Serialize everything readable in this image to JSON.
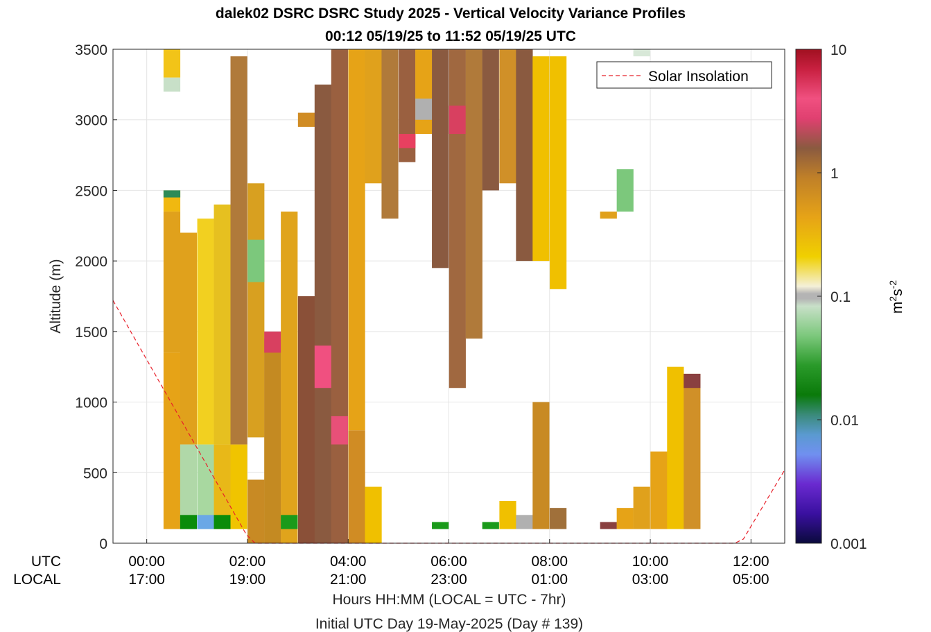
{
  "chart_data": {
    "type": "heatmap",
    "title": "dalek02 DSRC DSRC Study 2025 - Vertical Velocity Variance Profiles",
    "subtitle": "00:12 05/19/25 to 11:52 05/19/25  UTC",
    "ylabel": "Altitude (m)",
    "xlabel": "Hours HH:MM  (LOCAL = UTC - 7hr)",
    "xlabel2": "Initial UTC Day 19-May-2025 (Day # 139)",
    "utc_row_label": "UTC",
    "local_row_label": "LOCAL",
    "x_ticks_utc": [
      "00:00",
      "02:00",
      "04:00",
      "06:00",
      "08:00",
      "10:00",
      "12:00"
    ],
    "x_ticks_local": [
      "17:00",
      "19:00",
      "21:00",
      "23:00",
      "01:00",
      "03:00",
      "05:00"
    ],
    "x_tick_hours": [
      0,
      2,
      4,
      6,
      8,
      10,
      12
    ],
    "xlim_hours": [
      -0.67,
      12.67
    ],
    "y_ticks": [
      "0",
      "500",
      "1000",
      "1500",
      "2000",
      "2500",
      "3000",
      "3500"
    ],
    "ylim": [
      0,
      3500
    ],
    "grid": true,
    "legend": {
      "label": "Solar Insolation",
      "placement": "top-right",
      "color": "#e8202a",
      "style": "dashed"
    },
    "colorbar": {
      "label_base": "m",
      "label_sup1": "2",
      "label_mid": "s",
      "label_sup2": "-2",
      "scale": "log",
      "tick_labels": [
        "10",
        "1",
        "0.1",
        "0.01",
        "0.001"
      ],
      "tick_values": [
        10,
        1,
        0.1,
        0.01,
        0.001
      ],
      "range": [
        0.001,
        10
      ]
    },
    "solar_insolation": {
      "x_hours": [
        -0.67,
        1.98,
        2.15,
        11.68,
        11.85,
        12.67
      ],
      "y_altitude": [
        1720,
        60,
        0,
        0,
        30,
        520
      ]
    },
    "bin_width_hours": 0.333,
    "bin_height_m": 50,
    "profiles": [
      {
        "t": 0.5,
        "segs": [
          [
            100,
            1350,
            "#e6a317"
          ],
          [
            1350,
            2350,
            "#e0a11c"
          ],
          [
            2350,
            2500,
            "#f0b810"
          ],
          [
            2450,
            2500,
            "#2e8b57"
          ],
          [
            3200,
            3300,
            "#c8e0c8"
          ],
          [
            3300,
            3500,
            "#f2c418"
          ]
        ]
      },
      {
        "t": 0.83,
        "segs": [
          [
            100,
            700,
            "#b0d8a8"
          ],
          [
            700,
            2200,
            "#e0a11c"
          ],
          [
            100,
            200,
            "#0a8c0a"
          ]
        ]
      },
      {
        "t": 1.17,
        "segs": [
          [
            100,
            700,
            "#a8d8a0"
          ],
          [
            700,
            2300,
            "#f2d020"
          ],
          [
            100,
            200,
            "#6aa8e6"
          ]
        ]
      },
      {
        "t": 1.5,
        "segs": [
          [
            100,
            700,
            "#e8b818"
          ],
          [
            700,
            2400,
            "#e6c020"
          ],
          [
            100,
            200,
            "#0a8c0a"
          ]
        ]
      },
      {
        "t": 1.83,
        "segs": [
          [
            100,
            700,
            "#f0c400"
          ],
          [
            700,
            3450,
            "#b07a3a"
          ]
        ]
      },
      {
        "t": 2.17,
        "segs": [
          [
            0,
            450,
            "#c88a24"
          ],
          [
            750,
            2550,
            "#d8a020"
          ],
          [
            1850,
            2150,
            "#7cc87c"
          ]
        ]
      },
      {
        "t": 2.5,
        "segs": [
          [
            0,
            1450,
            "#c48a22"
          ],
          [
            1350,
            1500,
            "#d84060"
          ]
        ]
      },
      {
        "t": 2.83,
        "segs": [
          [
            0,
            2350,
            "#e0a41c"
          ],
          [
            100,
            200,
            "#1a9a1a"
          ]
        ]
      },
      {
        "t": 3.17,
        "segs": [
          [
            0,
            1750,
            "#8a5038"
          ],
          [
            2950,
            3050,
            "#d08c24"
          ]
        ]
      },
      {
        "t": 3.5,
        "segs": [
          [
            0,
            3250,
            "#8a5a40"
          ],
          [
            1100,
            1400,
            "#f05080"
          ]
        ]
      },
      {
        "t": 3.83,
        "segs": [
          [
            0,
            3500,
            "#9a6040"
          ],
          [
            700,
            900,
            "#e85078"
          ]
        ]
      },
      {
        "t": 4.17,
        "segs": [
          [
            0,
            800,
            "#d08c24"
          ],
          [
            800,
            3500,
            "#e6a317"
          ]
        ]
      },
      {
        "t": 4.5,
        "segs": [
          [
            0,
            400,
            "#f0c000"
          ],
          [
            2550,
            3500,
            "#e0a11c"
          ]
        ]
      },
      {
        "t": 4.83,
        "segs": [
          [
            2300,
            3500,
            "#b07a3a"
          ]
        ]
      },
      {
        "t": 5.17,
        "segs": [
          [
            2700,
            3500,
            "#9a6040"
          ],
          [
            2800,
            2900,
            "#e84060"
          ]
        ]
      },
      {
        "t": 5.5,
        "segs": [
          [
            2900,
            3500,
            "#e6a317"
          ],
          [
            3000,
            3150,
            "#b0b0b0"
          ]
        ]
      },
      {
        "t": 5.83,
        "segs": [
          [
            1950,
            3500,
            "#8a5a40"
          ],
          [
            100,
            150,
            "#1a9a1a"
          ]
        ]
      },
      {
        "t": 6.17,
        "segs": [
          [
            1100,
            3500,
            "#a06840"
          ],
          [
            2900,
            3100,
            "#d84060"
          ]
        ]
      },
      {
        "t": 6.5,
        "segs": [
          [
            1450,
            3500,
            "#b07a3a"
          ]
        ]
      },
      {
        "t": 6.83,
        "segs": [
          [
            100,
            150,
            "#1a9a1a"
          ],
          [
            2500,
            3500,
            "#8a5a40"
          ]
        ]
      },
      {
        "t": 7.17,
        "segs": [
          [
            100,
            300,
            "#f0c000"
          ],
          [
            2550,
            3500,
            "#d09028"
          ]
        ]
      },
      {
        "t": 7.5,
        "segs": [
          [
            2000,
            3500,
            "#8a5a40"
          ],
          [
            100,
            200,
            "#b0b0b0"
          ]
        ]
      },
      {
        "t": 7.83,
        "segs": [
          [
            100,
            1000,
            "#c88a24"
          ],
          [
            2000,
            3450,
            "#f0c000"
          ]
        ]
      },
      {
        "t": 8.17,
        "segs": [
          [
            100,
            250,
            "#a0703a"
          ],
          [
            1800,
            3450,
            "#f0c000"
          ]
        ]
      },
      {
        "t": 9.17,
        "segs": [
          [
            100,
            150,
            "#8a4040"
          ],
          [
            2300,
            2350,
            "#e0a11c"
          ]
        ]
      },
      {
        "t": 9.5,
        "segs": [
          [
            100,
            250,
            "#e6a317"
          ],
          [
            2350,
            2650,
            "#7cc87c"
          ]
        ]
      },
      {
        "t": 9.83,
        "segs": [
          [
            100,
            400,
            "#e0a11c"
          ],
          [
            3450,
            3500,
            "#d8e8d8"
          ]
        ]
      },
      {
        "t": 10.17,
        "segs": [
          [
            100,
            650,
            "#e6a317"
          ]
        ]
      },
      {
        "t": 10.5,
        "segs": [
          [
            100,
            1250,
            "#f0c000"
          ]
        ]
      },
      {
        "t": 10.83,
        "segs": [
          [
            100,
            1200,
            "#d09028"
          ],
          [
            1100,
            1200,
            "#8a4040"
          ]
        ]
      }
    ]
  }
}
